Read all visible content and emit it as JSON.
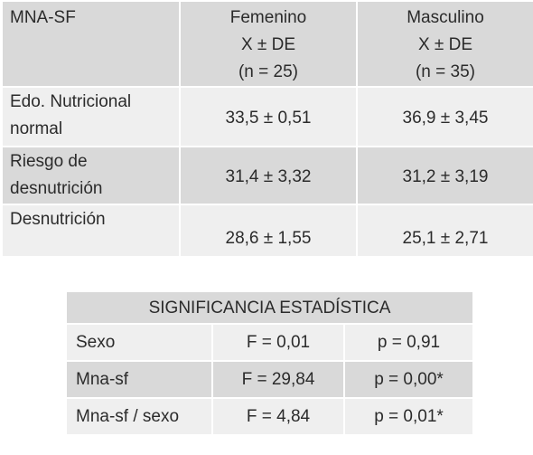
{
  "table1": {
    "header": {
      "label": "MNA-SF",
      "columns": [
        {
          "name": "Femenino",
          "measure": "X ± DE",
          "n": "(n = 25)"
        },
        {
          "name": "Masculino",
          "measure": "X ± DE",
          "n": "(n = 35)"
        }
      ]
    },
    "rows": [
      {
        "label_line1": "Edo. Nutricional",
        "label_line2": "normal",
        "femenino": "33,5 ± 0,51",
        "masculino": "36,9 ± 3,45"
      },
      {
        "label_line1": "Riesgo de",
        "label_line2": "desnutrición",
        "femenino": "31,4 ± 3,32",
        "masculino": "31,2 ± 3,19"
      },
      {
        "label_line1": "Desnutrición",
        "label_line2": "",
        "femenino": "28,6 ± 1,55",
        "masculino": "25,1 ± 2,71"
      }
    ]
  },
  "table2": {
    "title": "SIGNIFICANCIA ESTADÍSTICA",
    "rows": [
      {
        "factor": "Sexo",
        "f": "F = 0,01",
        "p": "p = 0,91"
      },
      {
        "factor": "Mna-sf",
        "f": "F = 29,84",
        "p": "p = 0,00*"
      },
      {
        "factor": "Mna-sf / sexo",
        "f": "F = 4,84",
        "p": "p = 0,01*"
      }
    ]
  }
}
